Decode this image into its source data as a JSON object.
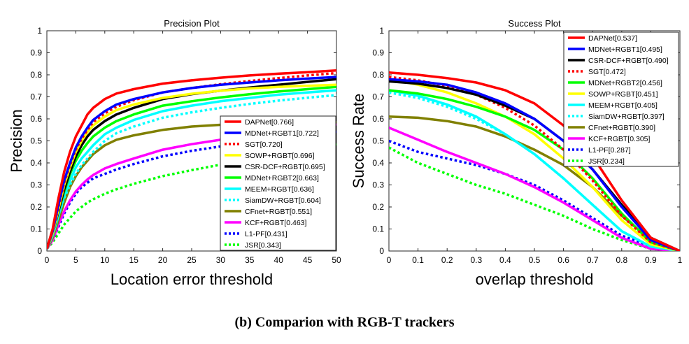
{
  "caption": "(b) Comparion with RGB-T trackers",
  "chart_data": [
    {
      "type": "line",
      "title": "Precision Plot",
      "xlabel": "Location error threshold",
      "ylabel": "Precision",
      "xlim": [
        0,
        50
      ],
      "ylim": [
        0,
        1
      ],
      "xticks": [
        "0",
        "5",
        "10",
        "15",
        "20",
        "25",
        "30",
        "35",
        "40",
        "45",
        "50"
      ],
      "yticks": [
        "0",
        "0.1",
        "0.2",
        "0.3",
        "0.4",
        "0.5",
        "0.6",
        "0.7",
        "0.8",
        "0.9",
        "1"
      ],
      "grid": false,
      "legend_position": "lower-right",
      "x": [
        0,
        1,
        2,
        3,
        4,
        5,
        6,
        7,
        8,
        10,
        12,
        15,
        20,
        25,
        30,
        35,
        40,
        45,
        50
      ],
      "series": [
        {
          "name": "DAPNet[0.766]",
          "color": "#ff0000",
          "dash": "solid",
          "values": [
            0.01,
            0.1,
            0.24,
            0.36,
            0.45,
            0.52,
            0.57,
            0.62,
            0.65,
            0.69,
            0.715,
            0.735,
            0.76,
            0.775,
            0.787,
            0.797,
            0.805,
            0.812,
            0.82
          ]
        },
        {
          "name": "MDNet+RGBT1[0.722]",
          "color": "#0000ff",
          "dash": "solid",
          "values": [
            0.01,
            0.09,
            0.21,
            0.32,
            0.4,
            0.47,
            0.52,
            0.56,
            0.595,
            0.635,
            0.665,
            0.69,
            0.72,
            0.74,
            0.755,
            0.765,
            0.775,
            0.783,
            0.79
          ]
        },
        {
          "name": "SGT[0.720]",
          "color": "#ff0000",
          "dash": "dot",
          "values": [
            0.01,
            0.09,
            0.2,
            0.31,
            0.39,
            0.46,
            0.51,
            0.55,
            0.585,
            0.625,
            0.655,
            0.685,
            0.72,
            0.74,
            0.757,
            0.772,
            0.785,
            0.797,
            0.808
          ]
        },
        {
          "name": "SOWP+RGBT[0.696]",
          "color": "#ffff00",
          "dash": "solid",
          "values": [
            0.01,
            0.08,
            0.19,
            0.3,
            0.38,
            0.45,
            0.5,
            0.54,
            0.57,
            0.61,
            0.64,
            0.665,
            0.695,
            0.714,
            0.728,
            0.738,
            0.745,
            0.75,
            0.755
          ]
        },
        {
          "name": "CSR-DCF+RGBT[0.695]",
          "color": "#000000",
          "dash": "solid",
          "values": [
            0.01,
            0.08,
            0.18,
            0.28,
            0.36,
            0.43,
            0.48,
            0.52,
            0.55,
            0.59,
            0.62,
            0.65,
            0.69,
            0.712,
            0.728,
            0.742,
            0.755,
            0.768,
            0.78
          ]
        },
        {
          "name": "MDNet+RGBT2[0.663]",
          "color": "#00ff00",
          "dash": "solid",
          "values": [
            0.01,
            0.08,
            0.18,
            0.27,
            0.35,
            0.41,
            0.455,
            0.49,
            0.52,
            0.56,
            0.59,
            0.62,
            0.66,
            0.68,
            0.697,
            0.712,
            0.724,
            0.735,
            0.745
          ]
        },
        {
          "name": "MEEM+RGBT[0.636]",
          "color": "#00ffff",
          "dash": "solid",
          "values": [
            0.01,
            0.07,
            0.16,
            0.25,
            0.32,
            0.38,
            0.42,
            0.45,
            0.48,
            0.53,
            0.56,
            0.595,
            0.635,
            0.66,
            0.68,
            0.695,
            0.71,
            0.72,
            0.73
          ]
        },
        {
          "name": "SiamDW+RGBT[0.604]",
          "color": "#00ffff",
          "dash": "dot",
          "values": [
            0.01,
            0.07,
            0.16,
            0.24,
            0.3,
            0.35,
            0.39,
            0.42,
            0.45,
            0.5,
            0.535,
            0.565,
            0.605,
            0.63,
            0.65,
            0.668,
            0.683,
            0.696,
            0.708
          ]
        },
        {
          "name": "CFnet+RGBT[0.551]",
          "color": "#808000",
          "dash": "solid",
          "values": [
            0.01,
            0.06,
            0.14,
            0.22,
            0.29,
            0.34,
            0.38,
            0.41,
            0.44,
            0.48,
            0.505,
            0.525,
            0.55,
            0.565,
            0.573,
            0.578,
            0.581,
            0.583,
            0.585
          ]
        },
        {
          "name": "KCF+RGBT[0.463]",
          "color": "#ff00ff",
          "dash": "solid",
          "values": [
            0.01,
            0.05,
            0.12,
            0.18,
            0.23,
            0.27,
            0.3,
            0.325,
            0.345,
            0.375,
            0.395,
            0.42,
            0.46,
            0.485,
            0.505,
            0.525,
            0.545,
            0.56,
            0.575
          ]
        },
        {
          "name": "L1-PF[0.431]",
          "color": "#0000ff",
          "dash": "dot",
          "values": [
            0.01,
            0.05,
            0.11,
            0.17,
            0.22,
            0.26,
            0.29,
            0.31,
            0.33,
            0.35,
            0.37,
            0.395,
            0.43,
            0.455,
            0.475,
            0.493,
            0.51,
            0.526,
            0.542
          ]
        },
        {
          "name": "JSR[0.343]",
          "color": "#00ff00",
          "dash": "dot",
          "values": [
            0.01,
            0.04,
            0.08,
            0.12,
            0.15,
            0.18,
            0.2,
            0.22,
            0.235,
            0.26,
            0.28,
            0.305,
            0.34,
            0.367,
            0.392,
            0.415,
            0.437,
            0.46,
            0.485
          ]
        }
      ]
    },
    {
      "type": "line",
      "title": "Success Plot",
      "xlabel": "overlap threshold",
      "ylabel": "Success Rate",
      "xlim": [
        0,
        1
      ],
      "ylim": [
        0,
        1
      ],
      "xticks": [
        "0",
        "0.1",
        "0.2",
        "0.3",
        "0.4",
        "0.5",
        "0.6",
        "0.7",
        "0.8",
        "0.9",
        "1"
      ],
      "yticks": [
        "0",
        "0.1",
        "0.2",
        "0.3",
        "0.4",
        "0.5",
        "0.6",
        "0.7",
        "0.8",
        "0.9",
        "1"
      ],
      "grid": false,
      "legend_position": "top-right",
      "x": [
        0,
        0.1,
        0.2,
        0.3,
        0.4,
        0.5,
        0.6,
        0.7,
        0.8,
        0.9,
        1.0
      ],
      "series": [
        {
          "name": "DAPNet[0.537]",
          "color": "#ff0000",
          "dash": "solid",
          "values": [
            0.81,
            0.8,
            0.785,
            0.765,
            0.73,
            0.67,
            0.57,
            0.43,
            0.23,
            0.06,
            0.0
          ]
        },
        {
          "name": "MDNet+RGBT1[0.495]",
          "color": "#0000ff",
          "dash": "solid",
          "values": [
            0.78,
            0.77,
            0.755,
            0.72,
            0.67,
            0.6,
            0.5,
            0.37,
            0.2,
            0.05,
            0.0
          ]
        },
        {
          "name": "CSR-DCF+RGBT[0.490]",
          "color": "#000000",
          "dash": "solid",
          "values": [
            0.77,
            0.76,
            0.74,
            0.71,
            0.66,
            0.6,
            0.5,
            0.37,
            0.21,
            0.06,
            0.0
          ]
        },
        {
          "name": "SGT[0.472]",
          "color": "#ff0000",
          "dash": "dot",
          "values": [
            0.79,
            0.775,
            0.75,
            0.71,
            0.65,
            0.57,
            0.46,
            0.32,
            0.16,
            0.04,
            0.0
          ]
        },
        {
          "name": "MDNet+RGBT2[0.456]",
          "color": "#00ff00",
          "dash": "solid",
          "values": [
            0.73,
            0.715,
            0.69,
            0.655,
            0.61,
            0.55,
            0.46,
            0.33,
            0.17,
            0.04,
            0.0
          ]
        },
        {
          "name": "SOWP+RGBT[0.451]",
          "color": "#ffff00",
          "dash": "solid",
          "values": [
            0.78,
            0.755,
            0.72,
            0.67,
            0.61,
            0.53,
            0.42,
            0.29,
            0.14,
            0.03,
            0.0
          ]
        },
        {
          "name": "MEEM+RGBT[0.405]",
          "color": "#00ffff",
          "dash": "solid",
          "values": [
            0.73,
            0.705,
            0.665,
            0.61,
            0.53,
            0.44,
            0.33,
            0.21,
            0.09,
            0.02,
            0.0
          ]
        },
        {
          "name": "SiamDW+RGBT[0.397]",
          "color": "#00ffff",
          "dash": "dot",
          "values": [
            0.72,
            0.695,
            0.655,
            0.6,
            0.53,
            0.44,
            0.33,
            0.21,
            0.09,
            0.02,
            0.0
          ]
        },
        {
          "name": "CFnet+RGBT[0.390]",
          "color": "#808000",
          "dash": "solid",
          "values": [
            0.61,
            0.605,
            0.59,
            0.565,
            0.52,
            0.46,
            0.39,
            0.29,
            0.16,
            0.05,
            0.0
          ]
        },
        {
          "name": "KCF+RGBT[0.305]",
          "color": "#ff00ff",
          "dash": "solid",
          "values": [
            0.56,
            0.505,
            0.45,
            0.4,
            0.35,
            0.29,
            0.22,
            0.14,
            0.06,
            0.01,
            0.0
          ]
        },
        {
          "name": "L1-PF[0.287]",
          "color": "#0000ff",
          "dash": "dot",
          "values": [
            0.5,
            0.45,
            0.42,
            0.39,
            0.35,
            0.3,
            0.23,
            0.15,
            0.07,
            0.02,
            0.0
          ]
        },
        {
          "name": "JSR[0.234]",
          "color": "#00ff00",
          "dash": "dot",
          "values": [
            0.47,
            0.4,
            0.35,
            0.3,
            0.26,
            0.21,
            0.16,
            0.1,
            0.05,
            0.01,
            0.0
          ]
        }
      ]
    }
  ]
}
